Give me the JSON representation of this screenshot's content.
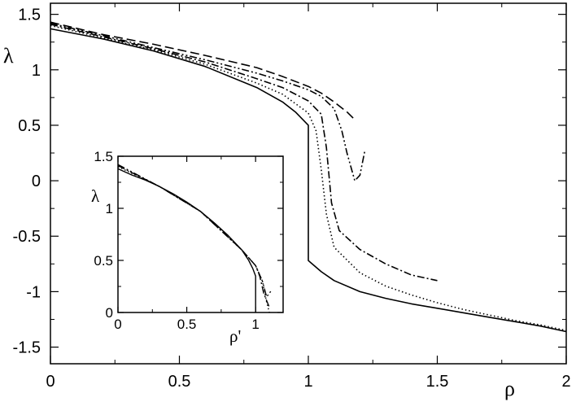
{
  "chart_data": [
    {
      "type": "line",
      "xlabel": "ρ",
      "ylabel": "λ",
      "xlim": [
        0,
        2
      ],
      "ylim": [
        -1.65,
        1.6
      ],
      "x_ticks": [
        0,
        0.5,
        1,
        1.5,
        2
      ],
      "x_tick_labels": [
        "0",
        "0.5",
        "1",
        "1.5",
        "2"
      ],
      "y_ticks": [
        -1.5,
        -1,
        -0.5,
        0,
        0.5,
        1,
        1.5
      ],
      "y_tick_labels": [
        "-1.5",
        "-1",
        "-0.5",
        "0",
        "0.5",
        "1",
        "1.5"
      ],
      "grid": false,
      "series": [
        {
          "style": "solid",
          "x": [
            0,
            0.2,
            0.4,
            0.6,
            0.8,
            0.9,
            0.95,
            1.0,
            1.0,
            1.05,
            1.1,
            1.2,
            1.3,
            1.4,
            1.5,
            1.6,
            1.7,
            1.8,
            1.9,
            2.0
          ],
          "y": [
            1.37,
            1.28,
            1.17,
            1.03,
            0.84,
            0.71,
            0.62,
            0.5,
            -0.72,
            -0.82,
            -0.9,
            -1.0,
            -1.06,
            -1.11,
            -1.15,
            -1.19,
            -1.23,
            -1.27,
            -1.31,
            -1.36
          ]
        },
        {
          "style": "dotted",
          "x": [
            0,
            0.2,
            0.4,
            0.6,
            0.8,
            0.9,
            1.0,
            1.03,
            1.05,
            1.07,
            1.1,
            1.2,
            1.3,
            1.4,
            1.5,
            1.6,
            1.7,
            1.8,
            1.9,
            2.0
          ],
          "y": [
            1.4,
            1.29,
            1.18,
            1.05,
            0.88,
            0.78,
            0.61,
            0.45,
            0.1,
            -0.3,
            -0.6,
            -0.83,
            -0.95,
            -1.03,
            -1.1,
            -1.16,
            -1.21,
            -1.26,
            -1.3,
            -1.35
          ]
        },
        {
          "style": "dash-dot",
          "x": [
            0,
            0.2,
            0.4,
            0.6,
            0.8,
            0.9,
            1.0,
            1.05,
            1.07,
            1.09,
            1.12,
            1.2,
            1.3,
            1.4,
            1.5
          ],
          "y": [
            1.41,
            1.3,
            1.19,
            1.07,
            0.92,
            0.84,
            0.72,
            0.6,
            0.3,
            -0.2,
            -0.45,
            -0.62,
            -0.75,
            -0.85,
            -0.9
          ]
        },
        {
          "style": "dash-dot-dot",
          "x": [
            0,
            0.2,
            0.4,
            0.6,
            0.8,
            0.9,
            1.0,
            1.05,
            1.1,
            1.13,
            1.15,
            1.18,
            1.2,
            1.22
          ],
          "y": [
            1.42,
            1.31,
            1.2,
            1.09,
            0.97,
            0.9,
            0.82,
            0.76,
            0.65,
            0.45,
            0.25,
            0.0,
            0.05,
            0.28
          ]
        },
        {
          "style": "dashed",
          "x": [
            0,
            0.2,
            0.4,
            0.6,
            0.8,
            0.9,
            1.0,
            1.05,
            1.1,
            1.15,
            1.18
          ],
          "y": [
            1.43,
            1.32,
            1.23,
            1.13,
            1.02,
            0.94,
            0.85,
            0.79,
            0.71,
            0.62,
            0.55
          ]
        }
      ]
    },
    {
      "type": "line",
      "xlabel": "ρ'",
      "ylabel": "λ",
      "xlim": [
        0,
        1.2
      ],
      "ylim": [
        0,
        1.5
      ],
      "x_ticks": [
        0,
        0.5,
        1
      ],
      "x_tick_labels": [
        "0",
        "0.5",
        "1"
      ],
      "y_ticks": [
        0,
        0.5,
        1,
        1.5
      ],
      "y_tick_labels": [
        "0",
        "0.5",
        "1",
        "1.5"
      ],
      "grid": false,
      "series": [
        {
          "style": "solid",
          "x": [
            0,
            0.1,
            0.2,
            0.3,
            0.4,
            0.5,
            0.6,
            0.7,
            0.8,
            0.9,
            0.95,
            0.98,
            1.0,
            1.0
          ],
          "y": [
            1.38,
            1.32,
            1.27,
            1.21,
            1.14,
            1.06,
            0.97,
            0.86,
            0.74,
            0.6,
            0.5,
            0.42,
            0.35,
            0.0
          ]
        },
        {
          "style": "dotted",
          "x": [
            0,
            0.3,
            0.6,
            0.9,
            1.0,
            1.05,
            1.08,
            1.1
          ],
          "y": [
            1.4,
            1.21,
            0.97,
            0.6,
            0.45,
            0.3,
            0.1,
            0.0
          ]
        },
        {
          "style": "dash-dot",
          "x": [
            0,
            0.3,
            0.6,
            0.9,
            1.0,
            1.03,
            1.06,
            1.1
          ],
          "y": [
            1.41,
            1.21,
            0.97,
            0.6,
            0.45,
            0.35,
            0.18,
            0.05
          ]
        },
        {
          "style": "dash-dot-dot",
          "x": [
            0,
            0.3,
            0.6,
            0.9,
            1.0,
            1.05,
            1.08,
            1.12
          ],
          "y": [
            1.42,
            1.21,
            0.97,
            0.6,
            0.45,
            0.3,
            0.15,
            0.22
          ]
        }
      ]
    }
  ]
}
